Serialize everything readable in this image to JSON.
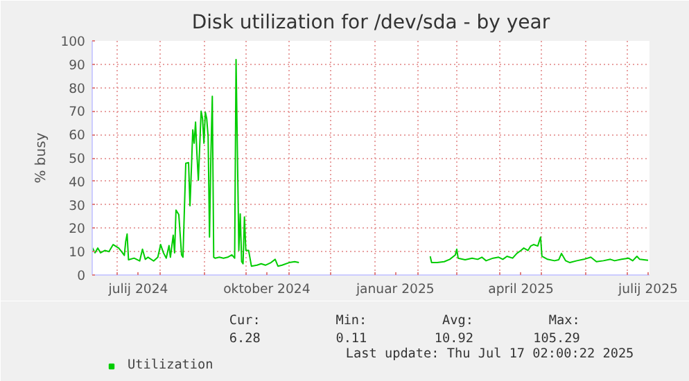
{
  "chart_data": {
    "type": "line",
    "title": "Disk utilization for /dev/sda - by year",
    "ylabel": "% busy",
    "xlim": [
      "2024-06-13",
      "2025-07-17"
    ],
    "ylim": [
      0,
      100
    ],
    "yticks": [
      0,
      10,
      20,
      30,
      40,
      50,
      60,
      70,
      80,
      90,
      100
    ],
    "xticks": [
      {
        "value": "2024-07-01",
        "label": null
      },
      {
        "value": "2024-07-16",
        "label": "julij 2024"
      },
      {
        "value": "2024-08-01",
        "label": null
      },
      {
        "value": "2024-09-01",
        "label": null
      },
      {
        "value": "2024-10-01",
        "label": null
      },
      {
        "value": "2024-10-16",
        "label": "oktober 2024"
      },
      {
        "value": "2024-11-01",
        "label": null
      },
      {
        "value": "2024-12-01",
        "label": null
      },
      {
        "value": "2025-01-01",
        "label": null
      },
      {
        "value": "2025-01-16",
        "label": "januar 2025"
      },
      {
        "value": "2025-02-01",
        "label": null
      },
      {
        "value": "2025-03-01",
        "label": null
      },
      {
        "value": "2025-04-01",
        "label": null
      },
      {
        "value": "2025-04-16",
        "label": "april 2025"
      },
      {
        "value": "2025-05-01",
        "label": null
      },
      {
        "value": "2025-06-01",
        "label": null
      },
      {
        "value": "2025-07-01",
        "label": null
      },
      {
        "value": "2025-07-16",
        "label": "julij 2025"
      }
    ],
    "grid": true,
    "legend": "bottom",
    "marker": "none",
    "line_style": "solid",
    "x": [
      "2024-06-13",
      "2024-06-15",
      "2024-06-17",
      "2024-06-19",
      "2024-06-22",
      "2024-06-25",
      "2024-06-28",
      "2024-07-02",
      "2024-07-04",
      "2024-07-06",
      "2024-07-07",
      "2024-07-08",
      "2024-07-09",
      "2024-07-13",
      "2024-07-17",
      "2024-07-19",
      "2024-07-21",
      "2024-07-23",
      "2024-07-27",
      "2024-07-30",
      "2024-08-01",
      "2024-08-03",
      "2024-08-05",
      "2024-08-07",
      "2024-08-08",
      "2024-08-10",
      "2024-08-11",
      "2024-08-12",
      "2024-08-14",
      "2024-08-16",
      "2024-08-17",
      "2024-08-19",
      "2024-08-21",
      "2024-08-22",
      "2024-08-23",
      "2024-08-24",
      "2024-08-25",
      "2024-08-26",
      "2024-08-27",
      "2024-08-28",
      "2024-08-30",
      "2024-08-31",
      "2024-09-01",
      "2024-09-02",
      "2024-09-03",
      "2024-09-04",
      "2024-09-05",
      "2024-09-06",
      "2024-09-07",
      "2024-09-08",
      "2024-09-09",
      "2024-09-12",
      "2024-09-15",
      "2024-09-18",
      "2024-09-21",
      "2024-09-23",
      "2024-09-24",
      "2024-09-26",
      "2024-09-27",
      "2024-09-28",
      "2024-09-29",
      "2024-09-30",
      "2024-10-01",
      "2024-10-03",
      "2024-10-05",
      "2024-10-09",
      "2024-10-12",
      "2024-10-15",
      "2024-10-19",
      "2024-10-22",
      "2024-10-24",
      "2024-10-27",
      "2024-11-01",
      "2024-11-05",
      "2024-11-08",
      "2024-11-09",
      "2025-02-10",
      "2025-02-11",
      "2025-02-15",
      "2025-02-20",
      "2025-02-24",
      "2025-02-28",
      "2025-03-01",
      "2025-03-02",
      "2025-03-07",
      "2025-03-12",
      "2025-03-16",
      "2025-03-19",
      "2025-03-22",
      "2025-03-27",
      "2025-03-31",
      "2025-04-03",
      "2025-04-06",
      "2025-04-10",
      "2025-04-13",
      "2025-04-16",
      "2025-04-18",
      "2025-04-21",
      "2025-04-23",
      "2025-04-25",
      "2025-04-28",
      "2025-04-30",
      "2025-05-01",
      "2025-05-05",
      "2025-05-10",
      "2025-05-13",
      "2025-05-15",
      "2025-05-18",
      "2025-05-21",
      "2025-05-26",
      "2025-05-31",
      "2025-06-05",
      "2025-06-09",
      "2025-06-14",
      "2025-06-19",
      "2025-06-22",
      "2025-06-27",
      "2025-07-02",
      "2025-07-05",
      "2025-07-08",
      "2025-07-10",
      "2025-07-16"
    ],
    "series": [
      {
        "name": "Utilization",
        "color": "#00cc00",
        "values": [
          11.8,
          9.5,
          11.5,
          9.5,
          10.5,
          10,
          13,
          11.5,
          10,
          8.4,
          14.3,
          17.5,
          6.5,
          7.2,
          6,
          11,
          6.7,
          7.6,
          6,
          7.6,
          13,
          9.5,
          7.2,
          12.6,
          7.6,
          17,
          9.5,
          27.7,
          25.8,
          8.6,
          7.6,
          47.7,
          48,
          29.6,
          44.8,
          62,
          56.3,
          65.3,
          51.5,
          40.5,
          70,
          66.8,
          56.3,
          69.5,
          66.8,
          59,
          16.2,
          51.5,
          76.3,
          7.6,
          7.2,
          7.6,
          7.2,
          7.6,
          8.6,
          7.2,
          92,
          10.5,
          26.1,
          5.7,
          4.8,
          24.8,
          10.5,
          10.5,
          3.8,
          4.2,
          4.8,
          4.2,
          5.3,
          6.7,
          3.8,
          4.2,
          5.3,
          5.7,
          5.3,
          null,
          8,
          5.3,
          5.3,
          5.7,
          6.7,
          8.6,
          11,
          7.2,
          6.5,
          7.2,
          6.7,
          7.6,
          6.1,
          7.2,
          7.6,
          6.7,
          8,
          7.2,
          9.2,
          10.5,
          11.5,
          10.5,
          12.4,
          13,
          12.4,
          16.2,
          8,
          6.7,
          6.1,
          6.5,
          9.2,
          6.1,
          5.3,
          6.1,
          6.7,
          7.6,
          5.7,
          6.1,
          6.7,
          6.1,
          6.7,
          7.2,
          6.1,
          8,
          6.7,
          6.3
        ]
      }
    ],
    "annotations": [
      "Cur:",
      "Min:",
      "Avg:",
      "Max:",
      "6.28",
      "0.11",
      "10.92",
      "105.29",
      "Last update: Thu Jul 17 02:00:22 2025"
    ]
  }
}
